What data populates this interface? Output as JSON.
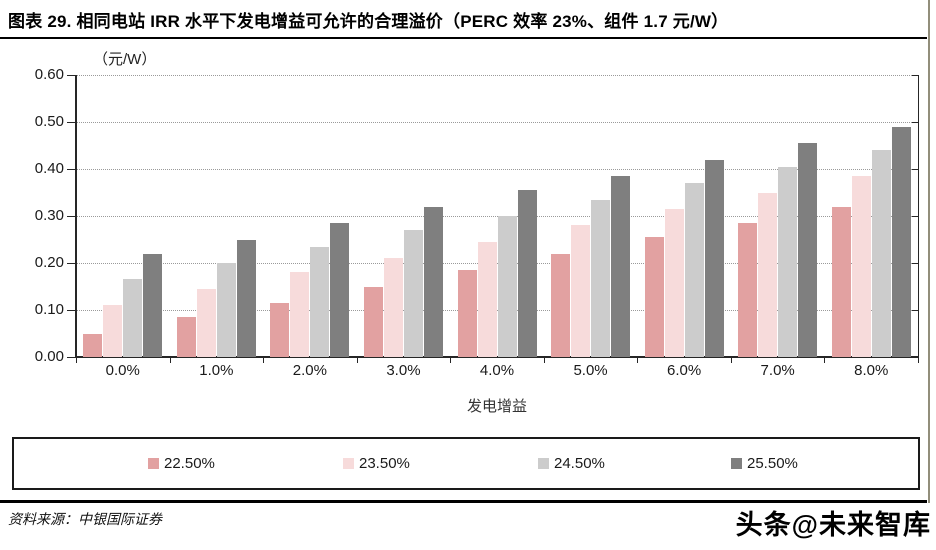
{
  "header": {
    "title": "图表 29. 相同电站 IRR 水平下发电增益可允许的合理溢价（PERC 效率 23%、组件 1.7 元/W）"
  },
  "chart_data": {
    "type": "bar",
    "title": "",
    "unit_label": "（元/W）",
    "xlabel": "发电增益",
    "ylabel": "",
    "ylim": [
      0,
      0.6
    ],
    "ytick_step": 0.1,
    "ytick_labels": [
      "0.00",
      "0.10",
      "0.20",
      "0.30",
      "0.40",
      "0.50",
      "0.60"
    ],
    "grid": "horizontal-dotted",
    "legend_position": "bottom-box",
    "categories": [
      "0.0%",
      "1.0%",
      "2.0%",
      "3.0%",
      "4.0%",
      "5.0%",
      "6.0%",
      "7.0%",
      "8.0%"
    ],
    "series": [
      {
        "name": "22.50%",
        "color": "#E2A1A1",
        "values": [
          0.05,
          0.085,
          0.115,
          0.15,
          0.185,
          0.22,
          0.255,
          0.285,
          0.32
        ]
      },
      {
        "name": "23.50%",
        "color": "#F7DBDB",
        "values": [
          0.11,
          0.145,
          0.18,
          0.21,
          0.245,
          0.28,
          0.315,
          0.35,
          0.385
        ]
      },
      {
        "name": "24.50%",
        "color": "#CCCCCC",
        "values": [
          0.165,
          0.2,
          0.235,
          0.27,
          0.3,
          0.335,
          0.37,
          0.405,
          0.44
        ]
      },
      {
        "name": "25.50%",
        "color": "#7F7F7F",
        "values": [
          0.22,
          0.25,
          0.285,
          0.32,
          0.355,
          0.385,
          0.42,
          0.455,
          0.49
        ]
      }
    ]
  },
  "footer": {
    "source": "资料来源：中银国际证券",
    "watermark": "头条@未来智库"
  }
}
